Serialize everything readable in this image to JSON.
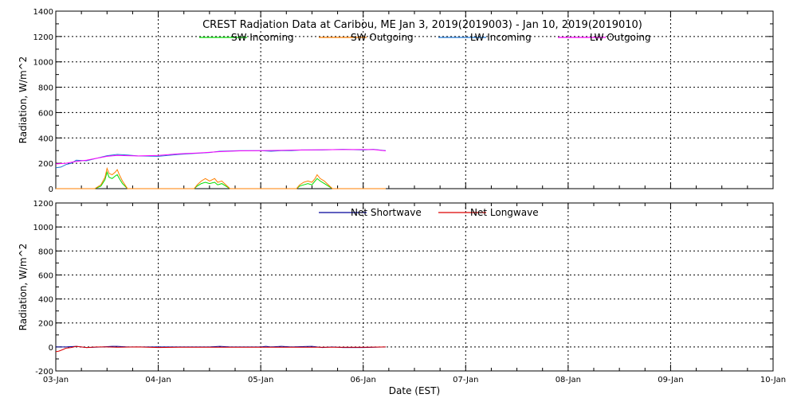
{
  "chart_data": [
    {
      "type": "line",
      "title": "CREST Radiation Data at Caribou, ME   Jan  3, 2019(2019003) - Jan 10, 2019(2019010)",
      "ylabel": "Radiation, W/m^2",
      "xlabel": "",
      "ylim": [
        0,
        1400
      ],
      "yticks": [
        0,
        200,
        400,
        600,
        800,
        1000,
        1200,
        1400
      ],
      "x_unit": "days since 03-Jan",
      "xlim": [
        0,
        7
      ],
      "grid": true,
      "legend_position": "top-center",
      "series": [
        {
          "name": "SW Incoming",
          "color": "#00dd00",
          "points": [
            [
              0.0,
              0
            ],
            [
              0.38,
              0
            ],
            [
              0.44,
              20
            ],
            [
              0.48,
              70
            ],
            [
              0.5,
              130
            ],
            [
              0.52,
              90
            ],
            [
              0.55,
              80
            ],
            [
              0.58,
              100
            ],
            [
              0.6,
              110
            ],
            [
              0.62,
              80
            ],
            [
              0.65,
              40
            ],
            [
              0.7,
              0
            ],
            [
              1.35,
              0
            ],
            [
              1.38,
              20
            ],
            [
              1.42,
              40
            ],
            [
              1.46,
              50
            ],
            [
              1.5,
              40
            ],
            [
              1.55,
              50
            ],
            [
              1.58,
              30
            ],
            [
              1.62,
              40
            ],
            [
              1.66,
              20
            ],
            [
              1.7,
              0
            ],
            [
              2.35,
              0
            ],
            [
              2.38,
              20
            ],
            [
              2.42,
              30
            ],
            [
              2.46,
              40
            ],
            [
              2.5,
              30
            ],
            [
              2.53,
              60
            ],
            [
              2.55,
              80
            ],
            [
              2.58,
              60
            ],
            [
              2.62,
              40
            ],
            [
              2.66,
              20
            ],
            [
              2.7,
              0
            ],
            [
              3.22,
              0
            ]
          ]
        },
        {
          "name": "SW Outgoing",
          "color": "#ff7f00",
          "points": [
            [
              0.0,
              0
            ],
            [
              0.38,
              0
            ],
            [
              0.44,
              30
            ],
            [
              0.48,
              90
            ],
            [
              0.5,
              160
            ],
            [
              0.52,
              120
            ],
            [
              0.55,
              110
            ],
            [
              0.58,
              130
            ],
            [
              0.6,
              150
            ],
            [
              0.62,
              110
            ],
            [
              0.65,
              60
            ],
            [
              0.7,
              0
            ],
            [
              1.35,
              0
            ],
            [
              1.38,
              30
            ],
            [
              1.42,
              60
            ],
            [
              1.46,
              80
            ],
            [
              1.5,
              60
            ],
            [
              1.55,
              80
            ],
            [
              1.58,
              50
            ],
            [
              1.62,
              60
            ],
            [
              1.66,
              30
            ],
            [
              1.7,
              0
            ],
            [
              2.35,
              0
            ],
            [
              2.38,
              30
            ],
            [
              2.42,
              50
            ],
            [
              2.46,
              60
            ],
            [
              2.5,
              50
            ],
            [
              2.53,
              80
            ],
            [
              2.55,
              110
            ],
            [
              2.58,
              80
            ],
            [
              2.62,
              60
            ],
            [
              2.66,
              30
            ],
            [
              2.7,
              0
            ],
            [
              3.22,
              0
            ]
          ]
        },
        {
          "name": "LW Incoming",
          "color": "#1f77d4",
          "points": [
            [
              0.0,
              165
            ],
            [
              0.05,
              170
            ],
            [
              0.1,
              190
            ],
            [
              0.15,
              200
            ],
            [
              0.2,
              225
            ],
            [
              0.3,
              220
            ],
            [
              0.4,
              240
            ],
            [
              0.5,
              260
            ],
            [
              0.6,
              270
            ],
            [
              0.7,
              265
            ],
            [
              0.8,
              258
            ],
            [
              1.0,
              255
            ],
            [
              1.2,
              270
            ],
            [
              1.4,
              280
            ],
            [
              1.5,
              285
            ],
            [
              1.6,
              295
            ],
            [
              1.8,
              300
            ],
            [
              2.0,
              300
            ],
            [
              2.1,
              295
            ],
            [
              2.2,
              300
            ],
            [
              2.3,
              300
            ],
            [
              2.4,
              305
            ],
            [
              2.6,
              305
            ],
            [
              2.8,
              310
            ],
            [
              3.0,
              305
            ],
            [
              3.1,
              310
            ],
            [
              3.22,
              300
            ]
          ]
        },
        {
          "name": "LW Outgoing",
          "color": "#ff00ff",
          "points": [
            [
              0.0,
              195
            ],
            [
              0.1,
              200
            ],
            [
              0.2,
              215
            ],
            [
              0.3,
              225
            ],
            [
              0.4,
              240
            ],
            [
              0.5,
              255
            ],
            [
              0.6,
              262
            ],
            [
              0.7,
              260
            ],
            [
              0.8,
              258
            ],
            [
              1.0,
              262
            ],
            [
              1.2,
              275
            ],
            [
              1.4,
              282
            ],
            [
              1.6,
              292
            ],
            [
              1.8,
              298
            ],
            [
              2.0,
              300
            ],
            [
              2.2,
              302
            ],
            [
              2.4,
              305
            ],
            [
              2.6,
              307
            ],
            [
              2.8,
              308
            ],
            [
              3.0,
              308
            ],
            [
              3.1,
              308
            ],
            [
              3.22,
              298
            ]
          ]
        }
      ]
    },
    {
      "type": "line",
      "title": "",
      "ylabel": "Radiation, W/m^2",
      "xlabel": "Date (EST)",
      "ylim": [
        -200,
        1200
      ],
      "yticks": [
        -200,
        0,
        200,
        400,
        600,
        800,
        1000,
        1200
      ],
      "x_unit": "days since 03-Jan",
      "xlim": [
        0,
        7
      ],
      "xticks": [
        "03-Jan",
        "04-Jan",
        "05-Jan",
        "06-Jan",
        "07-Jan",
        "08-Jan",
        "09-Jan",
        "10-Jan"
      ],
      "grid": true,
      "legend_position": "top-center",
      "series": [
        {
          "name": "Net Shortwave",
          "color": "#000099",
          "points": [
            [
              0.0,
              0
            ],
            [
              0.1,
              0
            ],
            [
              0.2,
              5
            ],
            [
              0.3,
              -5
            ],
            [
              0.45,
              0
            ],
            [
              0.55,
              5
            ],
            [
              0.6,
              5
            ],
            [
              0.7,
              0
            ],
            [
              1.0,
              0
            ],
            [
              1.5,
              0
            ],
            [
              1.6,
              5
            ],
            [
              1.7,
              0
            ],
            [
              2.0,
              0
            ],
            [
              2.05,
              5
            ],
            [
              2.1,
              0
            ],
            [
              2.2,
              5
            ],
            [
              2.3,
              0
            ],
            [
              2.5,
              5
            ],
            [
              2.6,
              -5
            ],
            [
              2.7,
              0
            ],
            [
              2.8,
              -5
            ],
            [
              3.0,
              -5
            ],
            [
              3.22,
              0
            ]
          ]
        },
        {
          "name": "Net Longwave",
          "color": "#dd0000",
          "points": [
            [
              0.0,
              -40
            ],
            [
              0.03,
              -35
            ],
            [
              0.06,
              -25
            ],
            [
              0.1,
              -10
            ],
            [
              0.15,
              -5
            ],
            [
              0.2,
              5
            ],
            [
              0.25,
              0
            ],
            [
              0.3,
              -5
            ],
            [
              0.4,
              0
            ],
            [
              0.5,
              0
            ],
            [
              0.6,
              -2
            ],
            [
              0.8,
              0
            ],
            [
              1.0,
              -5
            ],
            [
              1.2,
              -3
            ],
            [
              1.5,
              -2
            ],
            [
              2.0,
              -3
            ],
            [
              2.5,
              -2
            ],
            [
              3.0,
              -2
            ],
            [
              3.22,
              0
            ]
          ]
        }
      ]
    }
  ],
  "colors": {
    "frame": "#000000",
    "grid": "#000000",
    "background": "#ffffff"
  }
}
